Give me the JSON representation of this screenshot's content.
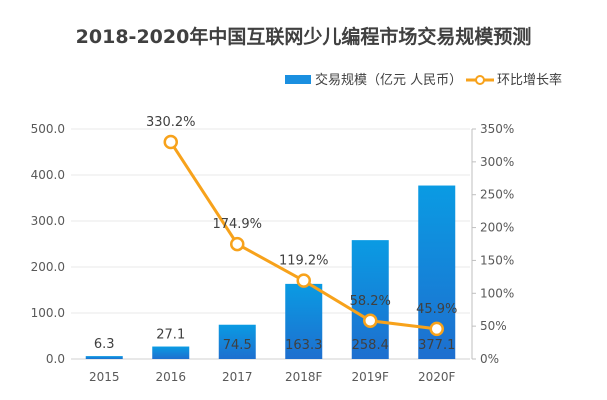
{
  "chart_data": {
    "type": "bar+line",
    "title": "2018-2020年中国互联网少儿编程市场交易规模预测",
    "categories": [
      "2015",
      "2016",
      "2017",
      "2018F",
      "2019F",
      "2020F"
    ],
    "series": [
      {
        "name": "交易规模（亿元 人民币）",
        "type": "bar",
        "axis": "left",
        "values": [
          6.3,
          27.1,
          74.5,
          163.3,
          258.4,
          377.1
        ],
        "labels": [
          "6.3",
          "27.1",
          "74.5",
          "163.3",
          "258.4",
          "377.1"
        ],
        "color": "#1a8fe0"
      },
      {
        "name": "环比增长率",
        "type": "line",
        "axis": "right",
        "values": [
          null,
          330.2,
          174.9,
          119.2,
          58.2,
          45.9
        ],
        "labels": [
          "",
          "330.2%",
          "174.9%",
          "119.2%",
          "58.2%",
          "45.9%"
        ],
        "color": "#f7a21b"
      }
    ],
    "y_left": {
      "range": [
        0,
        500
      ],
      "ticks": [
        "0.0",
        "100.0",
        "200.0",
        "300.0",
        "400.0",
        "500.0"
      ]
    },
    "y_right": {
      "range": [
        0,
        350
      ],
      "ticks": [
        "0%",
        "50%",
        "100%",
        "150%",
        "200%",
        "250%",
        "300%",
        "350%"
      ]
    },
    "grid": true,
    "legend": "top-right"
  }
}
